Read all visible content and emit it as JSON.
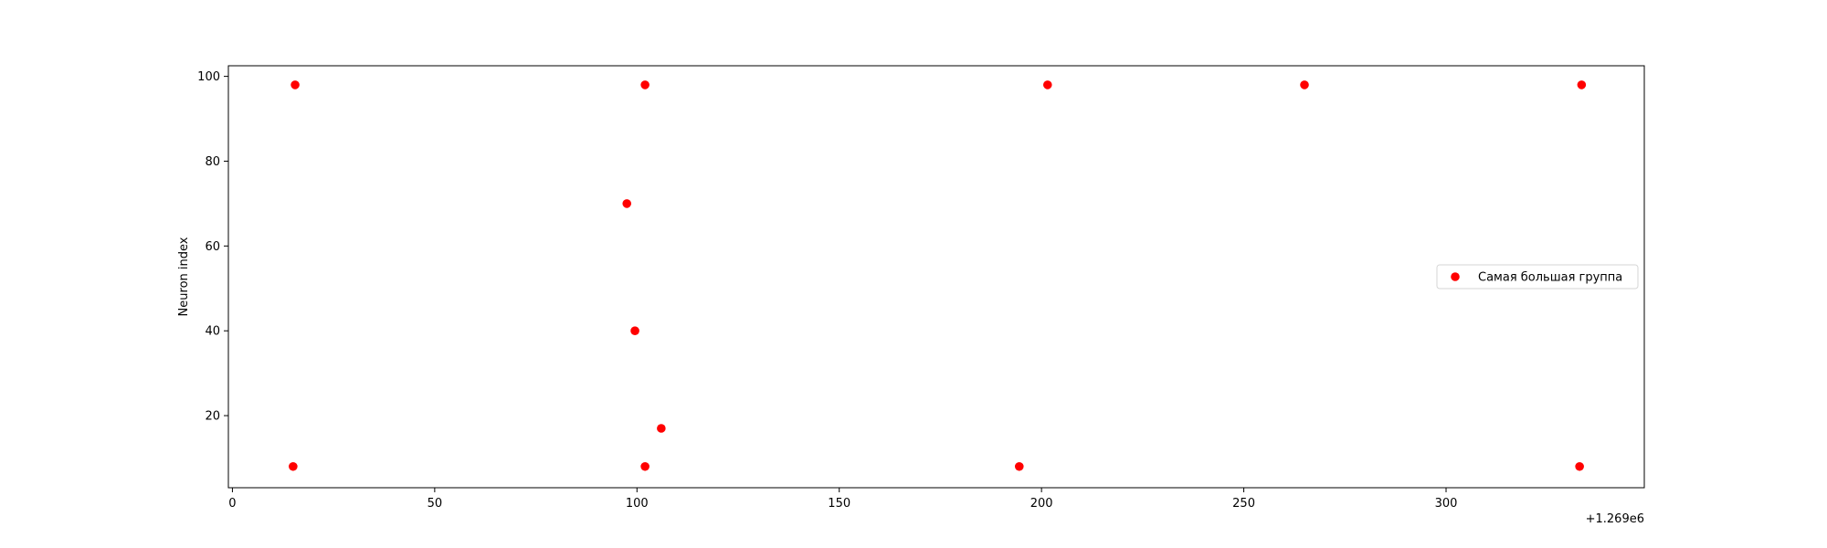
{
  "chart_data": {
    "type": "scatter",
    "title": "",
    "xlabel": "",
    "ylabel": "Neuron index",
    "x_offset_label": "+1.269e6",
    "x_offset": 1269000,
    "xlim": [
      -1,
      349
    ],
    "ylim": [
      3,
      102.5
    ],
    "x_ticks": [
      0,
      50,
      100,
      150,
      200,
      250,
      300
    ],
    "y_ticks": [
      20,
      40,
      60,
      80,
      100
    ],
    "grid": false,
    "legend_position": "center-right",
    "series": [
      {
        "name": "Самая большая группа",
        "color": "#ff0000",
        "points": [
          {
            "x": 1269015.5,
            "y": 98
          },
          {
            "x": 1269102,
            "y": 98
          },
          {
            "x": 1269201.5,
            "y": 98
          },
          {
            "x": 1269265,
            "y": 98
          },
          {
            "x": 1269333.5,
            "y": 98
          },
          {
            "x": 1269097.5,
            "y": 70
          },
          {
            "x": 1269099.5,
            "y": 40
          },
          {
            "x": 1269106,
            "y": 17
          },
          {
            "x": 1269015,
            "y": 8
          },
          {
            "x": 1269102,
            "y": 8
          },
          {
            "x": 1269194.5,
            "y": 8
          },
          {
            "x": 1269333,
            "y": 8
          }
        ]
      }
    ]
  }
}
